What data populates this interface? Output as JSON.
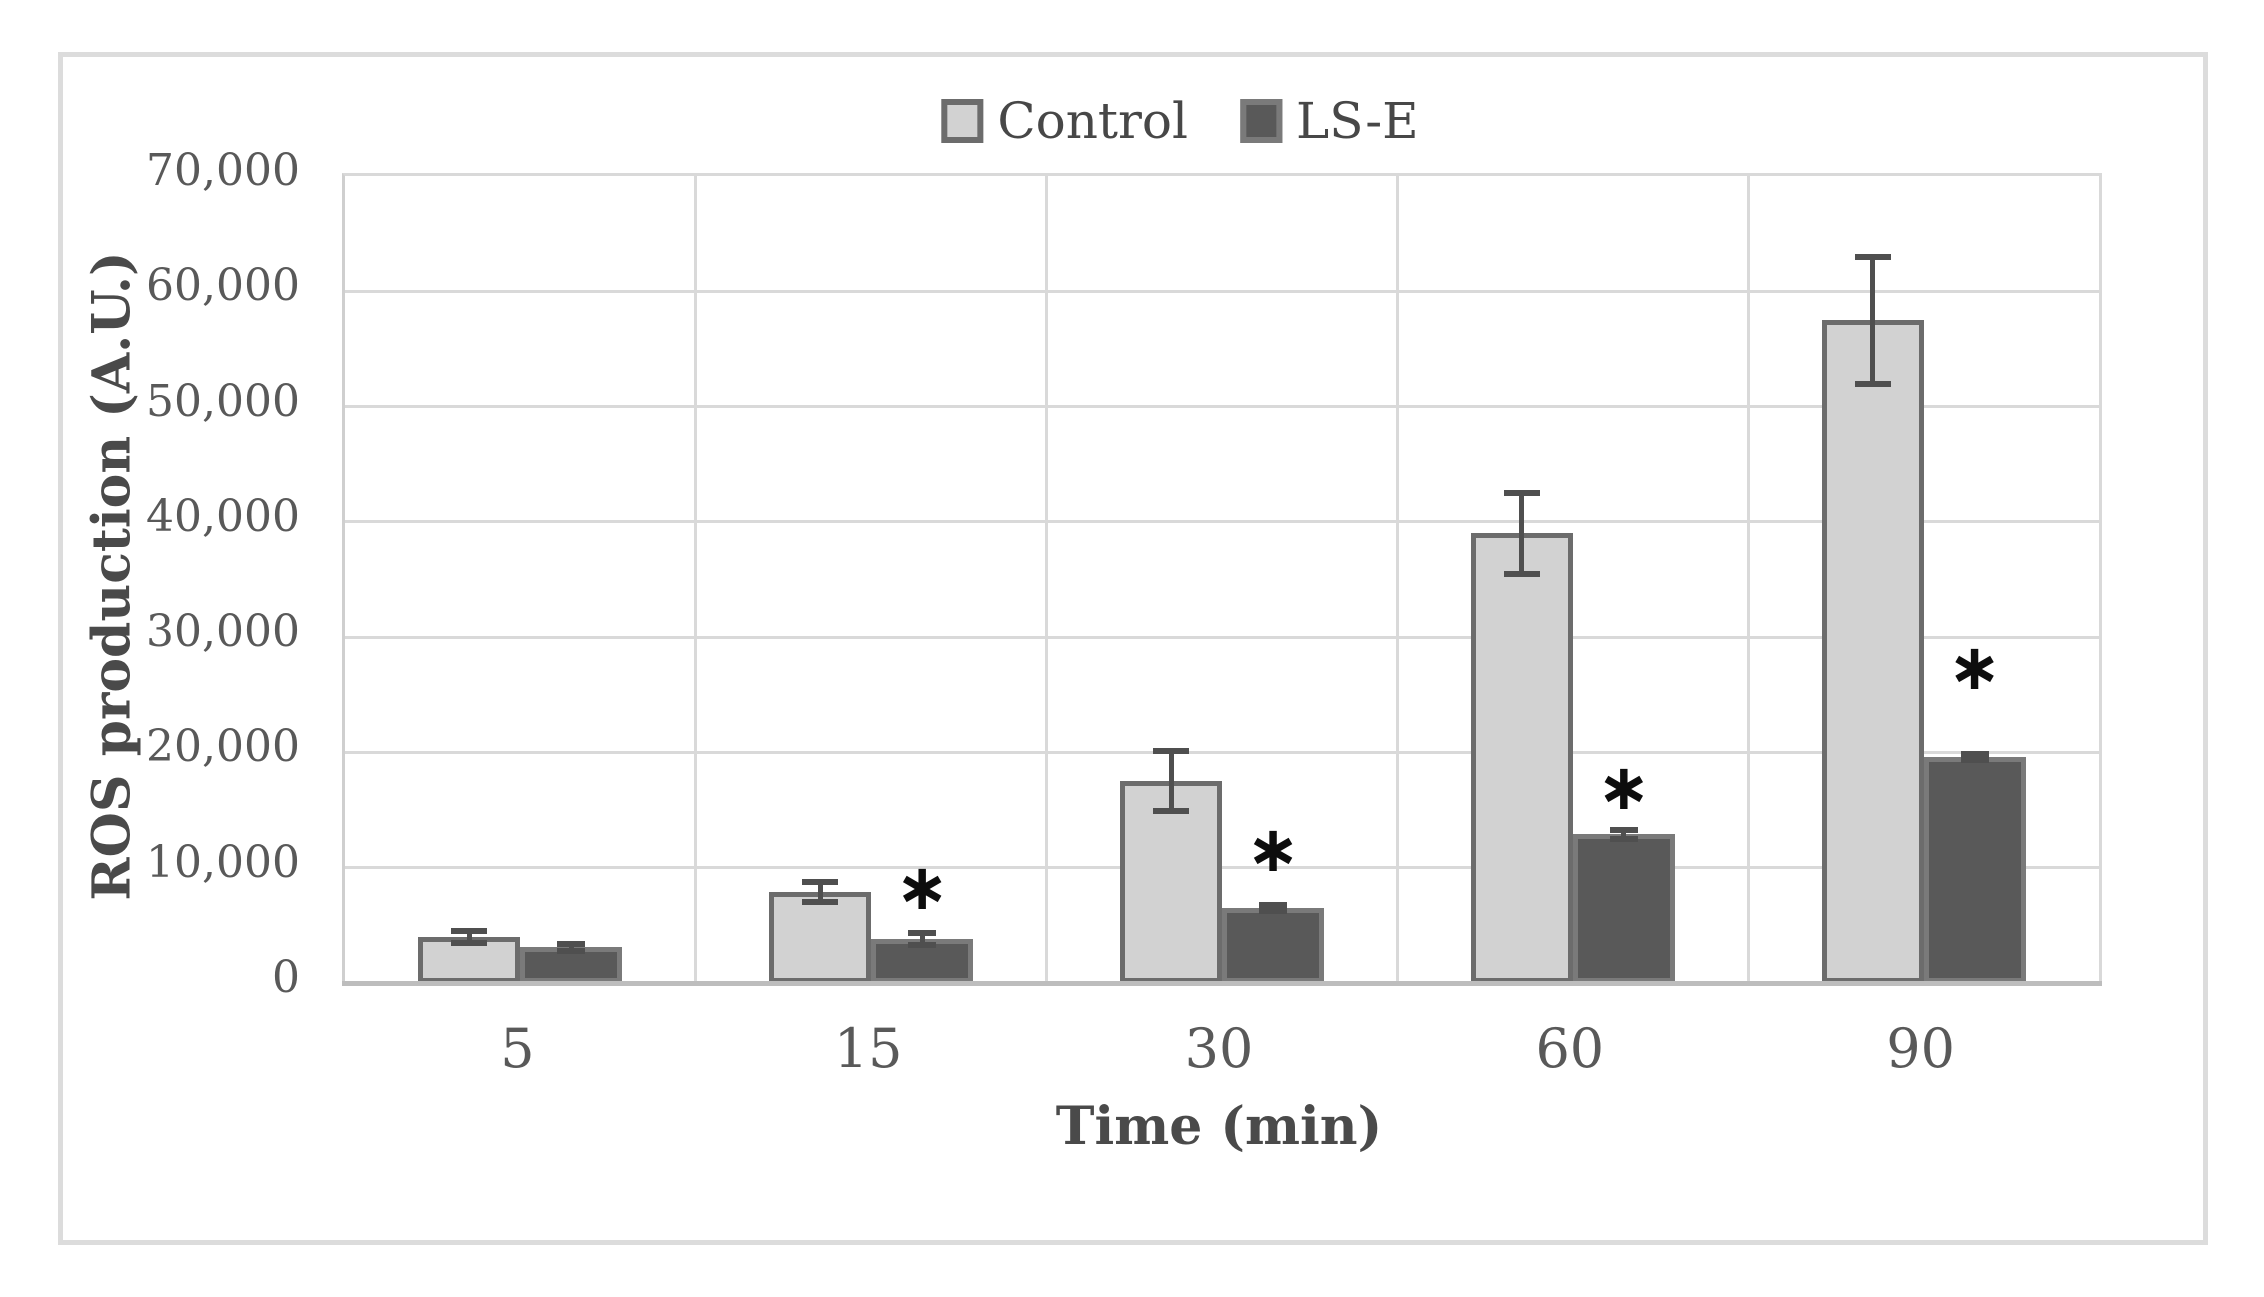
{
  "figure": {
    "kind": "scientific bar chart",
    "outer_border_color": "#dcdcdc",
    "background": "#ffffff"
  },
  "legend": {
    "items": [
      {
        "label": "Control",
        "fill": "#d2d2d2",
        "border": "#6c6c6c"
      },
      {
        "label": "LS-E",
        "fill": "#595959",
        "border": "#7a7a7a"
      }
    ]
  },
  "chart_data": {
    "type": "bar",
    "title": "",
    "xlabel": "Time (min)",
    "ylabel": "ROS production (A.U.)",
    "categories": [
      "5",
      "15",
      "30",
      "60",
      "90"
    ],
    "series": [
      {
        "name": "Control",
        "values": [
          4000,
          7900,
          17500,
          39000,
          57500
        ],
        "errors": [
          500,
          900,
          2600,
          3500,
          5500
        ],
        "fill": "#d2d2d2",
        "border": "#6c6c6c"
      },
      {
        "name": "LS-E",
        "values": [
          3100,
          3800,
          6500,
          12900,
          19600
        ],
        "errors": [
          300,
          500,
          250,
          400,
          300
        ],
        "fill": "#595959",
        "border": "#7a7a7a"
      }
    ],
    "significance_markers": [
      {
        "category": "15",
        "series": "LS-E",
        "marker": "*",
        "y": 8200
      },
      {
        "category": "30",
        "series": "LS-E",
        "marker": "*",
        "y": 11500
      },
      {
        "category": "60",
        "series": "LS-E",
        "marker": "*",
        "y": 16900
      },
      {
        "category": "90",
        "series": "LS-E",
        "marker": "*",
        "y": 27300
      }
    ],
    "ylim": [
      0,
      70000
    ],
    "ytick_step": 10000,
    "ytick_labels": [
      "0",
      "10,000",
      "20,000",
      "30,000",
      "40,000",
      "50,000",
      "60,000",
      "70,000"
    ],
    "grid": true,
    "gridline_color": "#d9d9d9",
    "axis_line_color": "#bdbdbd",
    "error_bar_color": "#4f4f4f",
    "legend_position": "top-center"
  }
}
